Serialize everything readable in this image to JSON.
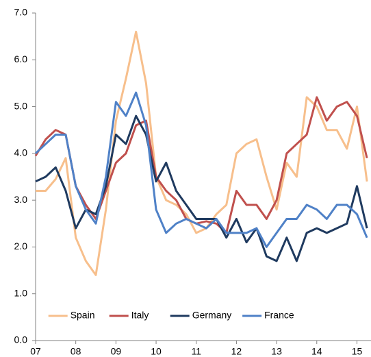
{
  "chart_data": {
    "type": "line",
    "x": [
      7.0,
      7.25,
      7.5,
      7.75,
      8.0,
      8.25,
      8.5,
      8.75,
      9.0,
      9.25,
      9.5,
      9.75,
      10.0,
      10.25,
      10.5,
      10.75,
      11.0,
      11.25,
      11.5,
      11.75,
      12.0,
      12.25,
      12.5,
      12.75,
      13.0,
      13.25,
      13.5,
      13.75,
      14.0,
      14.25,
      14.5,
      14.75,
      15.0,
      15.25
    ],
    "series": [
      {
        "name": "Spain",
        "color": "#f7bf8c",
        "values": [
          3.2,
          3.2,
          3.45,
          3.9,
          2.2,
          1.7,
          1.4,
          2.8,
          4.7,
          5.6,
          6.6,
          5.5,
          3.5,
          3.0,
          2.9,
          2.7,
          2.3,
          2.4,
          2.7,
          2.9,
          4.0,
          4.2,
          4.3,
          3.5,
          2.8,
          3.8,
          3.5,
          5.2,
          5.0,
          4.5,
          4.5,
          4.1,
          5.0,
          3.4
        ]
      },
      {
        "name": "Italy",
        "color": "#c0504d",
        "values": [
          3.95,
          4.3,
          4.5,
          4.4,
          3.3,
          2.9,
          2.6,
          3.2,
          3.8,
          4.0,
          4.6,
          4.7,
          3.5,
          3.2,
          3.0,
          2.6,
          2.5,
          2.55,
          2.5,
          2.3,
          3.2,
          2.9,
          2.9,
          2.6,
          3.0,
          4.0,
          4.2,
          4.4,
          5.2,
          4.7,
          5.0,
          5.1,
          4.8,
          3.9
        ]
      },
      {
        "name": "Germany",
        "color": "#1f3a5f",
        "values": [
          3.4,
          3.5,
          3.7,
          3.2,
          2.4,
          2.8,
          2.7,
          3.3,
          4.4,
          4.2,
          4.8,
          4.4,
          3.4,
          3.8,
          3.2,
          2.9,
          2.6,
          2.6,
          2.6,
          2.2,
          2.6,
          2.1,
          2.4,
          1.8,
          1.7,
          2.2,
          1.7,
          2.3,
          2.4,
          2.3,
          2.4,
          2.5,
          3.3,
          2.4
        ]
      },
      {
        "name": "France",
        "color": "#4f81c7",
        "values": [
          4.0,
          4.2,
          4.4,
          4.4,
          3.3,
          2.8,
          2.5,
          3.5,
          5.1,
          4.8,
          5.3,
          4.6,
          2.8,
          2.3,
          2.5,
          2.6,
          2.5,
          2.4,
          2.6,
          2.3,
          2.3,
          2.3,
          2.4,
          2.0,
          2.3,
          2.6,
          2.6,
          2.9,
          2.8,
          2.6,
          2.9,
          2.9,
          2.7,
          2.2
        ]
      }
    ],
    "xlim": [
      7,
      15.35
    ],
    "xticks": [
      {
        "value": 7,
        "label": "07"
      },
      {
        "value": 8,
        "label": "08"
      },
      {
        "value": 9,
        "label": "09"
      },
      {
        "value": 10,
        "label": "10"
      },
      {
        "value": 11,
        "label": "11"
      },
      {
        "value": 12,
        "label": "12"
      },
      {
        "value": 13,
        "label": "13"
      },
      {
        "value": 14,
        "label": "14"
      },
      {
        "value": 15,
        "label": "15"
      }
    ],
    "ylim": [
      0,
      7
    ],
    "yticks": [
      {
        "value": 0,
        "label": "0.0"
      },
      {
        "value": 1,
        "label": "1.0"
      },
      {
        "value": 2,
        "label": "2.0"
      },
      {
        "value": 3,
        "label": "3.0"
      },
      {
        "value": 4,
        "label": "4.0"
      },
      {
        "value": 5,
        "label": "5.0"
      },
      {
        "value": 6,
        "label": "6.0"
      },
      {
        "value": 7,
        "label": "7.0"
      }
    ],
    "grid": false,
    "legend": "lower-center"
  }
}
